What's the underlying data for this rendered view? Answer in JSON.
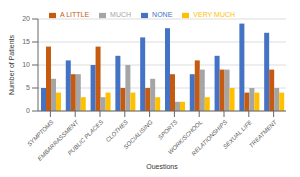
{
  "chart_data": {
    "type": "bar",
    "xlabel": "Questions",
    "ylabel": "Number of Patients",
    "categories": [
      "SYMPTOMS",
      "EMBARRASSMENT",
      "PUBLIC PLACES",
      "CLOTHES",
      "SOCIALISING",
      "SPORTS",
      "WORK/SCHOOL",
      "RELATIONSHIPS",
      "SEXUAL LIFE",
      "TREATMENT"
    ],
    "series": [
      {
        "name": "NONE",
        "color": "#4472C4",
        "values": [
          5,
          11,
          10,
          12,
          16,
          18,
          8,
          12,
          19,
          17
        ]
      },
      {
        "name": "A LITTLE",
        "color": "#C55A11",
        "values": [
          14,
          8,
          14,
          5,
          5,
          8,
          11,
          9,
          4,
          9
        ]
      },
      {
        "name": "MUCH",
        "color": "#A5A5A5",
        "values": [
          7,
          8,
          3,
          10,
          7,
          2,
          9,
          9,
          5,
          5
        ]
      },
      {
        "name": "VERY MUCH",
        "color": "#FFC000",
        "values": [
          4,
          3,
          4,
          4,
          3,
          2,
          3,
          5,
          4,
          4
        ]
      }
    ],
    "ylim": [
      0,
      20
    ],
    "yticks": [
      0,
      5,
      10,
      15,
      20
    ],
    "grid": true,
    "legend": "top"
  }
}
